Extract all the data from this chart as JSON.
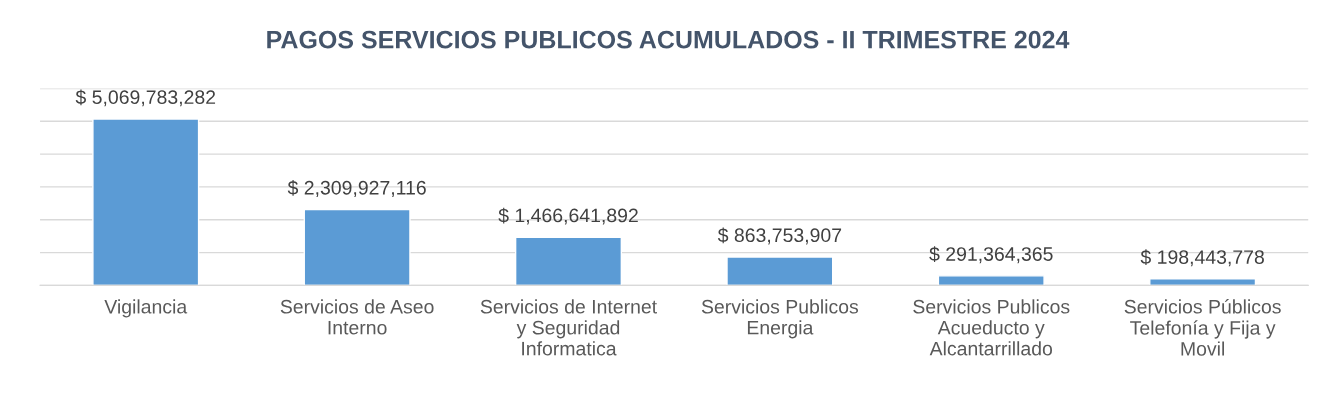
{
  "chart_data": {
    "type": "bar",
    "title": "PAGOS SERVICIOS PUBLICOS ACUMULADOS - II TRIMESTRE 2024",
    "categories": [
      "Vigilancia",
      "Servicios de Aseo\nInterno",
      "Servicios de Internet\ny Seguridad\nInformatica",
      "Servicios Publicos\nEnergia",
      "Servicios Publicos\nAcueducto y\nAlcantarrillado",
      "Servicios Públicos\nTelefonía y Fija y\nMovil"
    ],
    "values": [
      5069783282,
      2309927116,
      1466641892,
      863753907,
      291364365,
      198443778
    ],
    "value_labels": [
      "$ 5,069,783,282",
      "$ 2,309,927,116",
      "$ 1,466,641,892",
      "$ 863,753,907",
      "$ 291,364,365",
      "$ 198,443,778"
    ],
    "color": "#5b9bd5",
    "ylim": [
      0,
      6000000000
    ],
    "yticks": [
      {
        "value": 0,
        "label": null
      },
      {
        "value": 1000000000,
        "label": null
      },
      {
        "value": 2000000000,
        "label": null
      },
      {
        "value": 3000000000,
        "label": null
      },
      {
        "value": 4000000000,
        "label": null
      },
      {
        "value": 5000000000,
        "label": null
      },
      {
        "value": 6000000000,
        "label": null
      }
    ],
    "grid": "y",
    "tick_labels": "x"
  }
}
